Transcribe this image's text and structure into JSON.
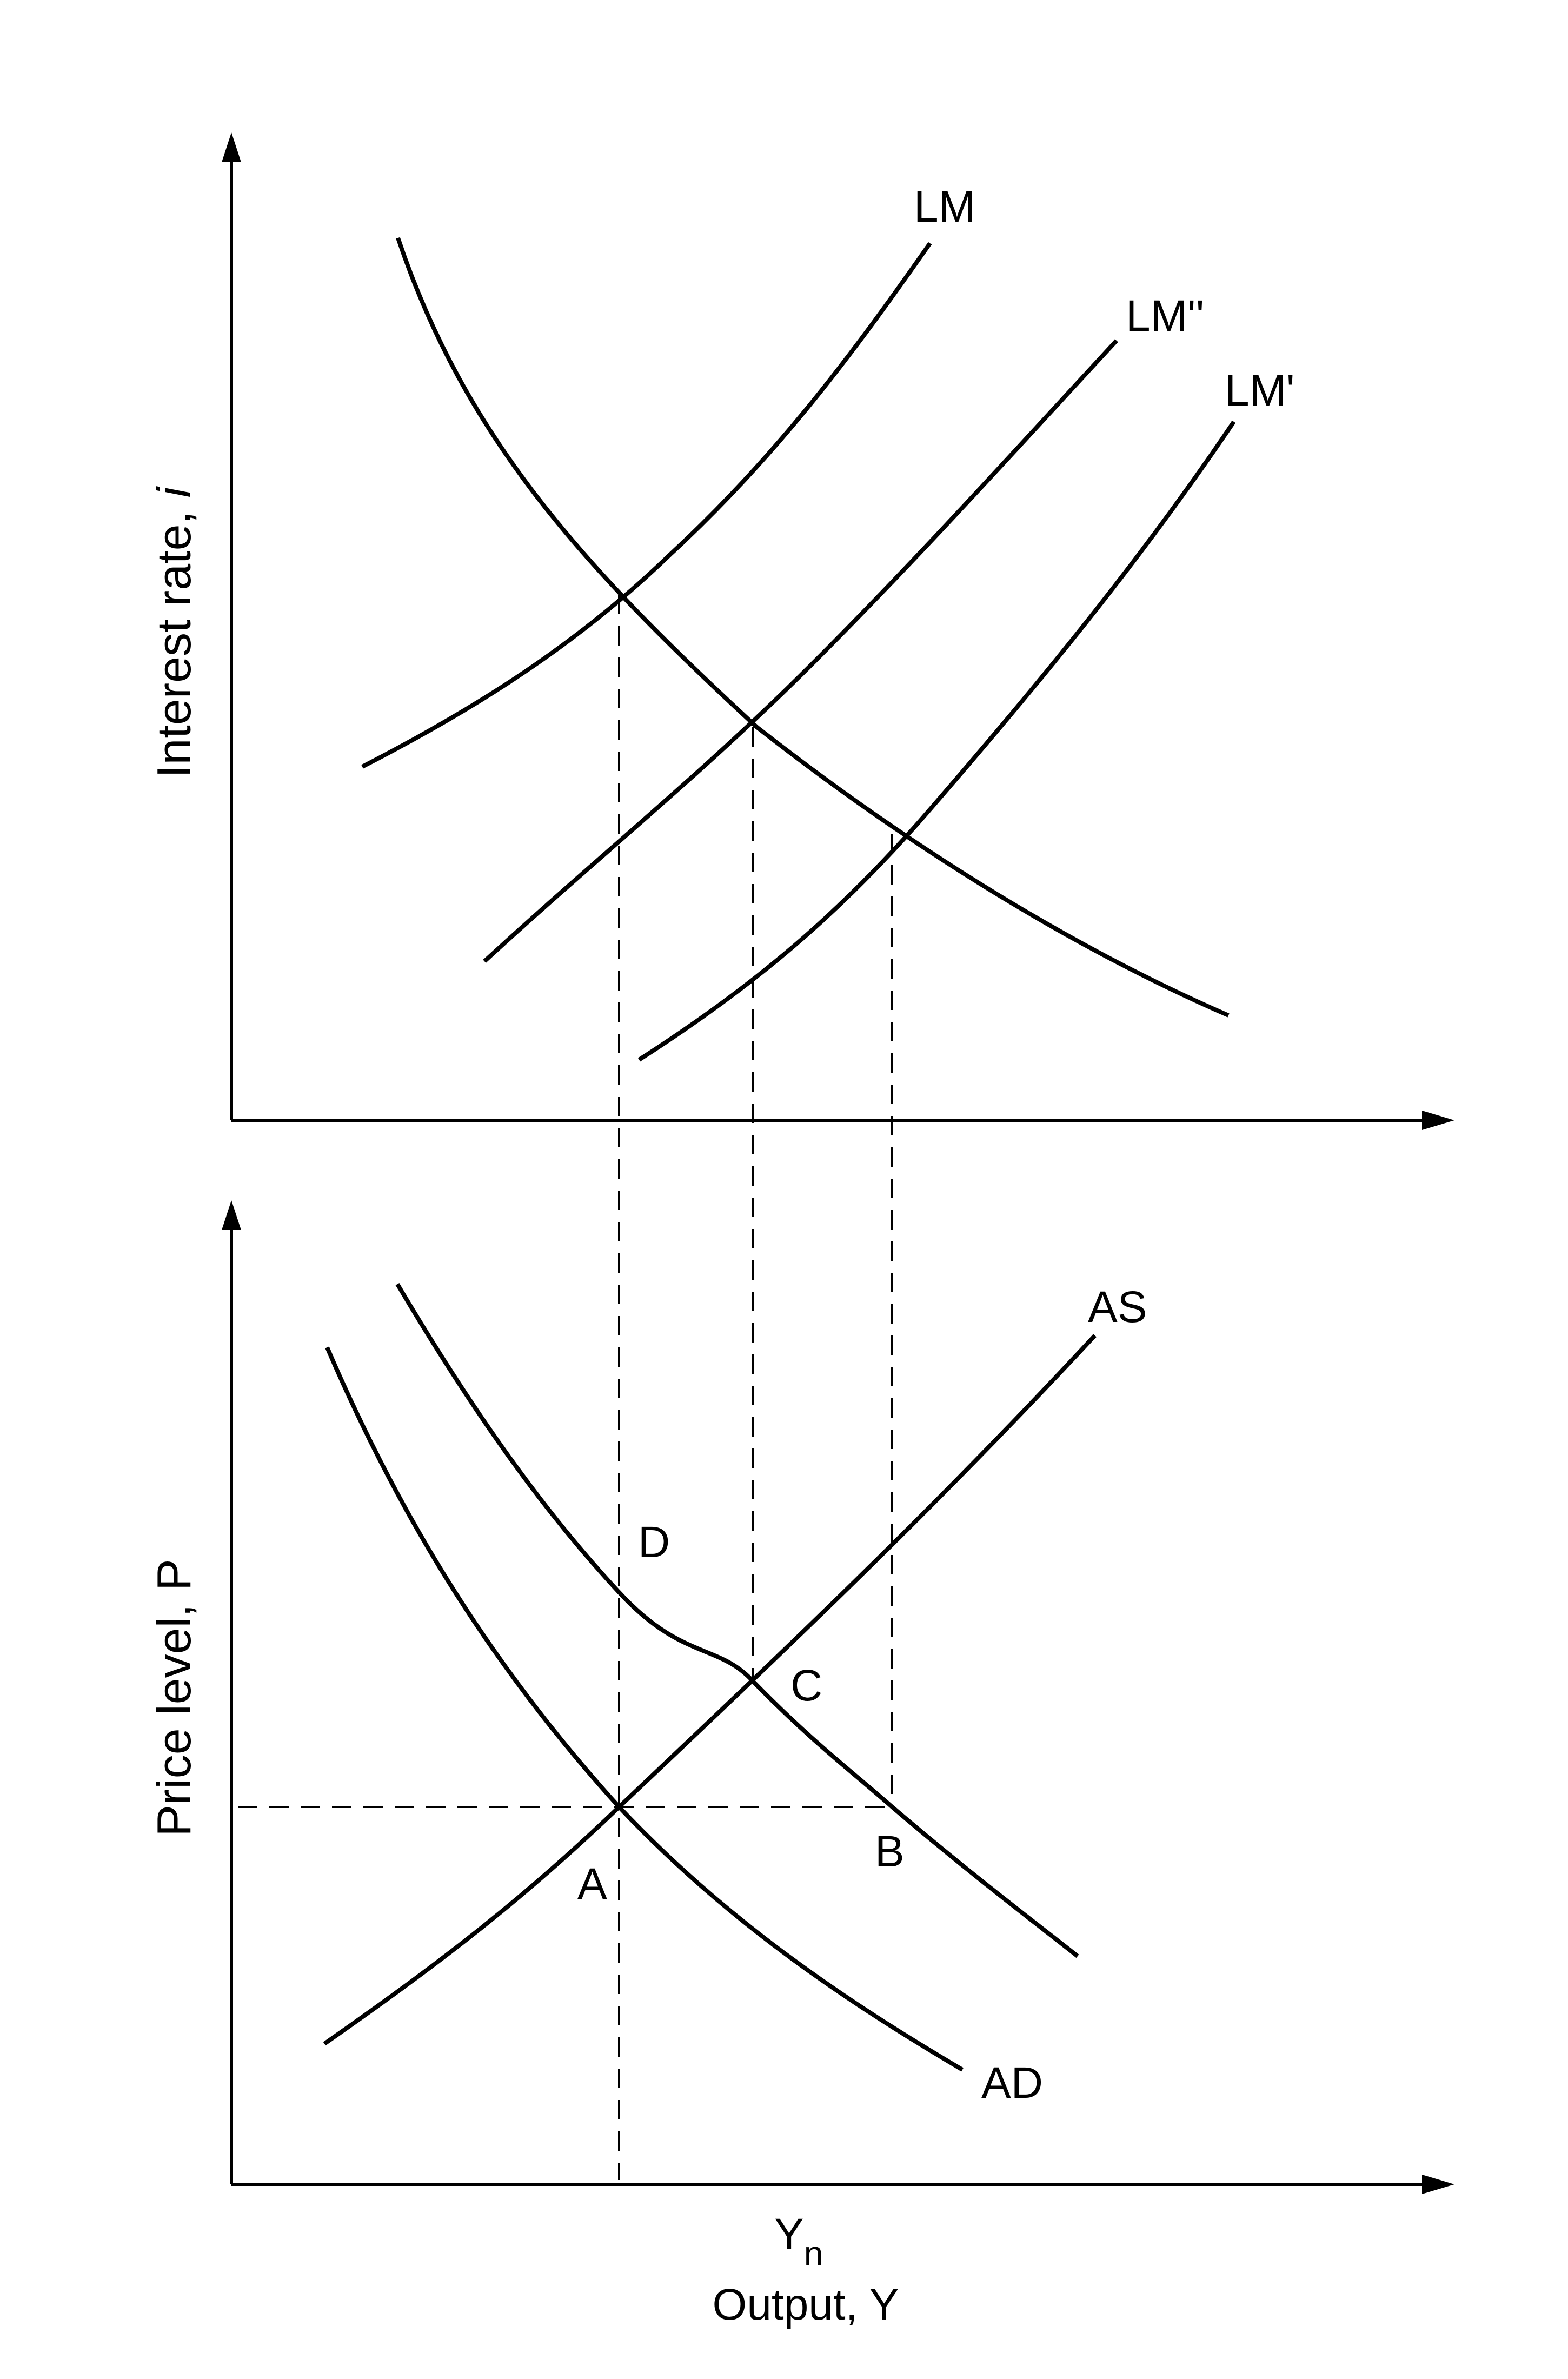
{
  "top_panel": {
    "y_axis_label": "Interest rate, ",
    "y_axis_label_var": "i",
    "curves": [
      {
        "id": "is",
        "label": ""
      },
      {
        "id": "lm",
        "label": "LM"
      },
      {
        "id": "lm_double_prime",
        "label": "LM''"
      },
      {
        "id": "lm_prime",
        "label": "LM'"
      }
    ]
  },
  "bottom_panel": {
    "y_axis_label": "Price level, P",
    "x_tick_label": "Y",
    "x_tick_label_sub": "n",
    "x_axis_label": "Output, Y",
    "curves": [
      {
        "id": "ad",
        "label": "AD"
      },
      {
        "id": "ad_shifted",
        "label": ""
      },
      {
        "id": "as",
        "label": "AS"
      }
    ],
    "points": [
      {
        "id": "a",
        "label": "A"
      },
      {
        "id": "b",
        "label": "B"
      },
      {
        "id": "c",
        "label": "C"
      },
      {
        "id": "d",
        "label": "D"
      }
    ]
  }
}
